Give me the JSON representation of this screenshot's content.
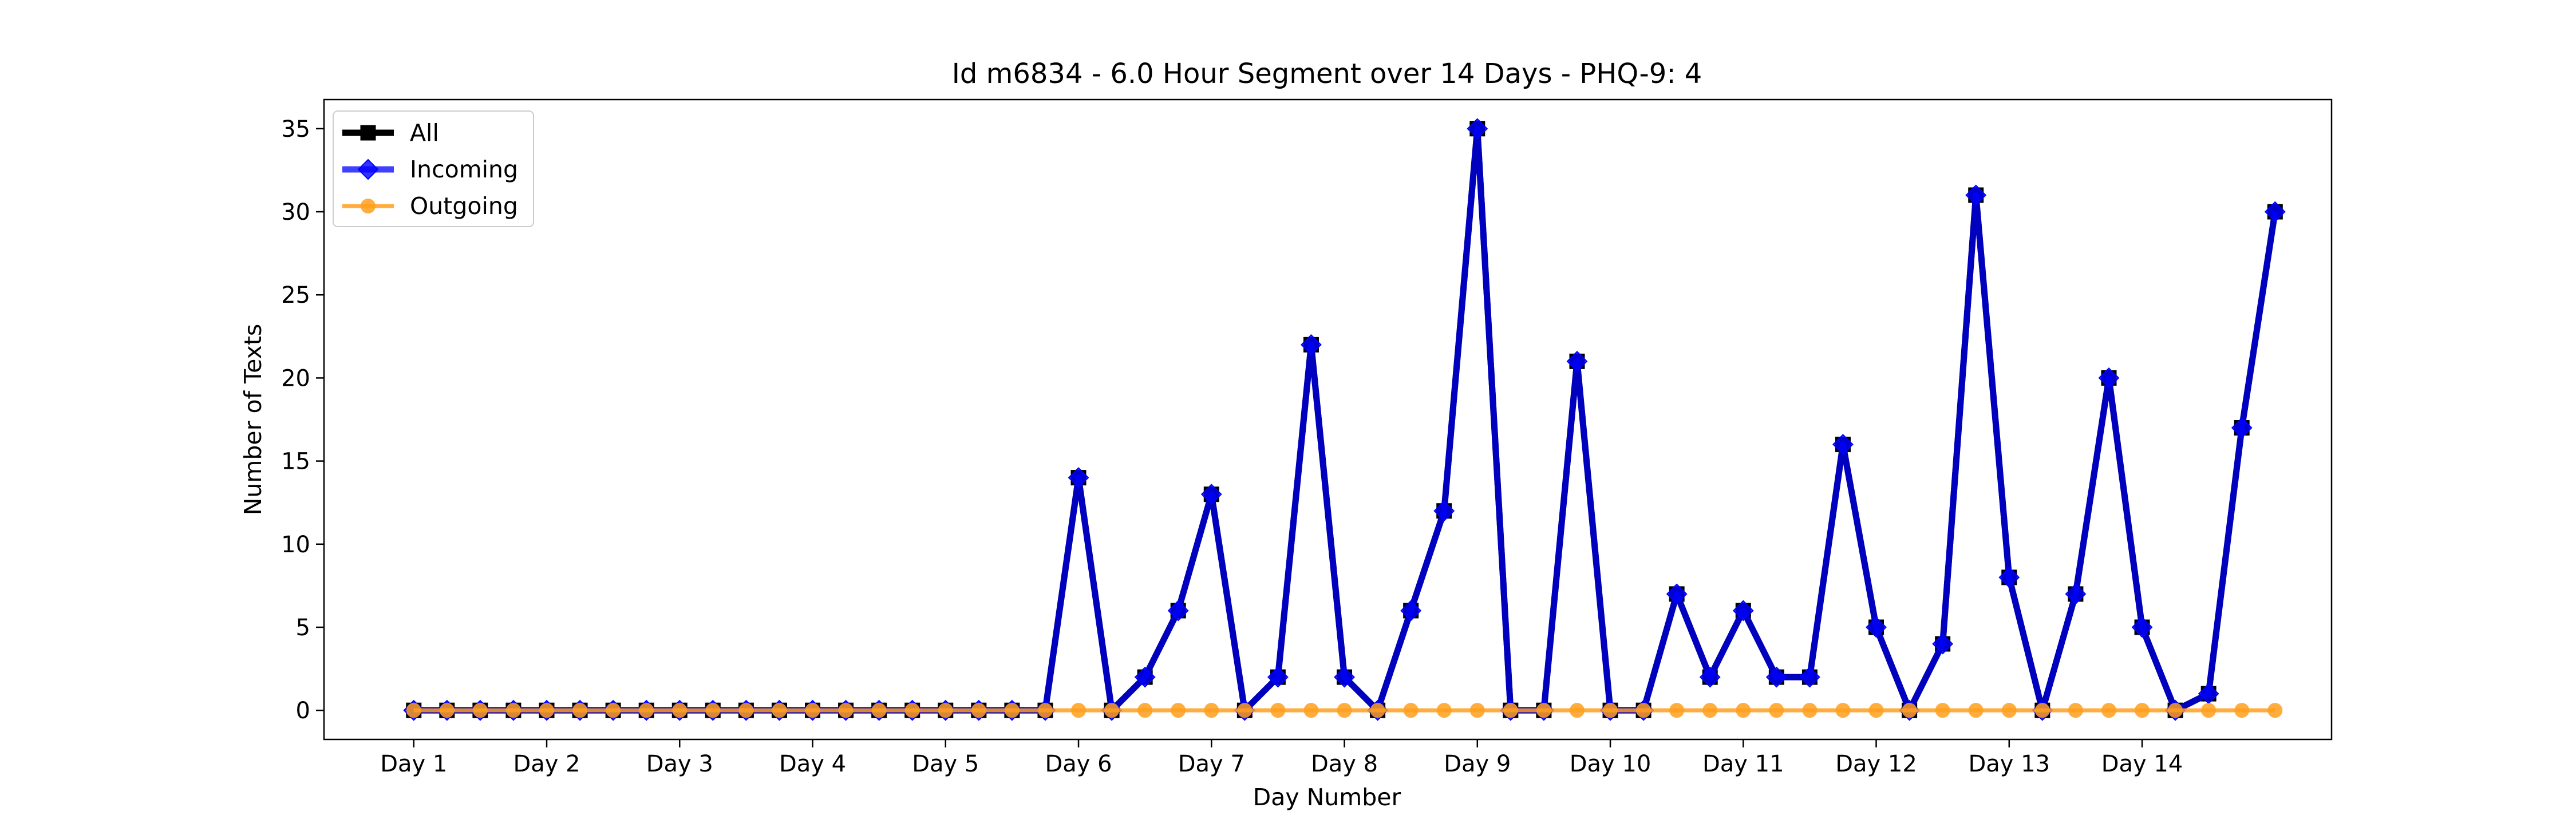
{
  "chart_data": {
    "type": "line",
    "title": "Id m6834 - 6.0 Hour Segment over 14 Days - PHQ-9: 4",
    "xlabel": "Day Number",
    "ylabel": "Number of Texts",
    "xtick_labels": [
      "Day 1",
      "Day 2",
      "Day 3",
      "Day 4",
      "Day 5",
      "Day 6",
      "Day 7",
      "Day 8",
      "Day 9",
      "Day 10",
      "Day 11",
      "Day 12",
      "Day 13",
      "Day 14"
    ],
    "yticks": [
      0,
      5,
      10,
      15,
      20,
      25,
      30,
      35
    ],
    "ylim": [
      -1.75,
      36.75
    ],
    "segments_per_day": 4,
    "legend_position": "top-left",
    "grid": false,
    "series": [
      {
        "name": "All",
        "color": "#000000",
        "marker": "square",
        "values": [
          0,
          0,
          0,
          0,
          0,
          0,
          0,
          0,
          0,
          0,
          0,
          0,
          0,
          0,
          0,
          0,
          0,
          0,
          0,
          0,
          14,
          0,
          2,
          6,
          13,
          0,
          2,
          22,
          2,
          0,
          6,
          12,
          35,
          0,
          0,
          21,
          0,
          0,
          7,
          2,
          6,
          2,
          2,
          16,
          5,
          0,
          4,
          31,
          8,
          0,
          7,
          20,
          5,
          0,
          1,
          17,
          30
        ]
      },
      {
        "name": "Incoming",
        "color": "#0000ff",
        "marker": "diamond",
        "values": [
          0,
          0,
          0,
          0,
          0,
          0,
          0,
          0,
          0,
          0,
          0,
          0,
          0,
          0,
          0,
          0,
          0,
          0,
          0,
          0,
          14,
          0,
          2,
          6,
          13,
          0,
          2,
          22,
          2,
          0,
          6,
          12,
          35,
          0,
          0,
          21,
          0,
          0,
          7,
          2,
          6,
          2,
          2,
          16,
          5,
          0,
          4,
          31,
          8,
          0,
          7,
          20,
          5,
          0,
          1,
          17,
          30
        ]
      },
      {
        "name": "Outgoing",
        "color": "#ff9f1c",
        "marker": "circle",
        "values": [
          0,
          0,
          0,
          0,
          0,
          0,
          0,
          0,
          0,
          0,
          0,
          0,
          0,
          0,
          0,
          0,
          0,
          0,
          0,
          0,
          0,
          0,
          0,
          0,
          0,
          0,
          0,
          0,
          0,
          0,
          0,
          0,
          0,
          0,
          0,
          0,
          0,
          0,
          0,
          0,
          0,
          0,
          0,
          0,
          0,
          0,
          0,
          0,
          0,
          0,
          0,
          0,
          0,
          0,
          0,
          0,
          0
        ]
      }
    ]
  }
}
